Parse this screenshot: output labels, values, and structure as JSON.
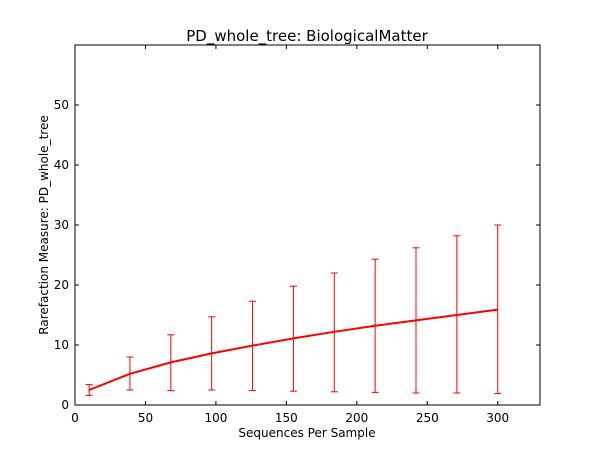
{
  "chart_data": {
    "type": "line",
    "title": "PD_whole_tree: BiologicalMatter",
    "xlabel": "Sequences Per Sample",
    "ylabel": "Rarefaction Measure: PD_whole_tree",
    "xlim": [
      0,
      330
    ],
    "ylim": [
      0,
      60
    ],
    "xticks": [
      0,
      50,
      100,
      150,
      200,
      250,
      300
    ],
    "yticks": [
      0,
      10,
      20,
      30,
      40,
      50
    ],
    "grid": false,
    "series": [
      {
        "color": "#ff0000",
        "x": [
          10,
          39,
          68,
          97,
          126,
          155,
          184,
          213,
          242,
          271,
          300
        ],
        "y": [
          2.5,
          5.2,
          7.1,
          8.6,
          9.9,
          11.1,
          12.2,
          13.2,
          14.1,
          15.0,
          15.9
        ],
        "err_low": [
          1.6,
          2.5,
          2.4,
          2.5,
          2.4,
          2.3,
          2.2,
          2.1,
          2.0,
          2.0,
          1.9
        ],
        "err_high": [
          3.4,
          8.0,
          11.7,
          14.7,
          17.3,
          19.8,
          22.0,
          24.3,
          26.2,
          28.2,
          30.0
        ]
      }
    ]
  }
}
